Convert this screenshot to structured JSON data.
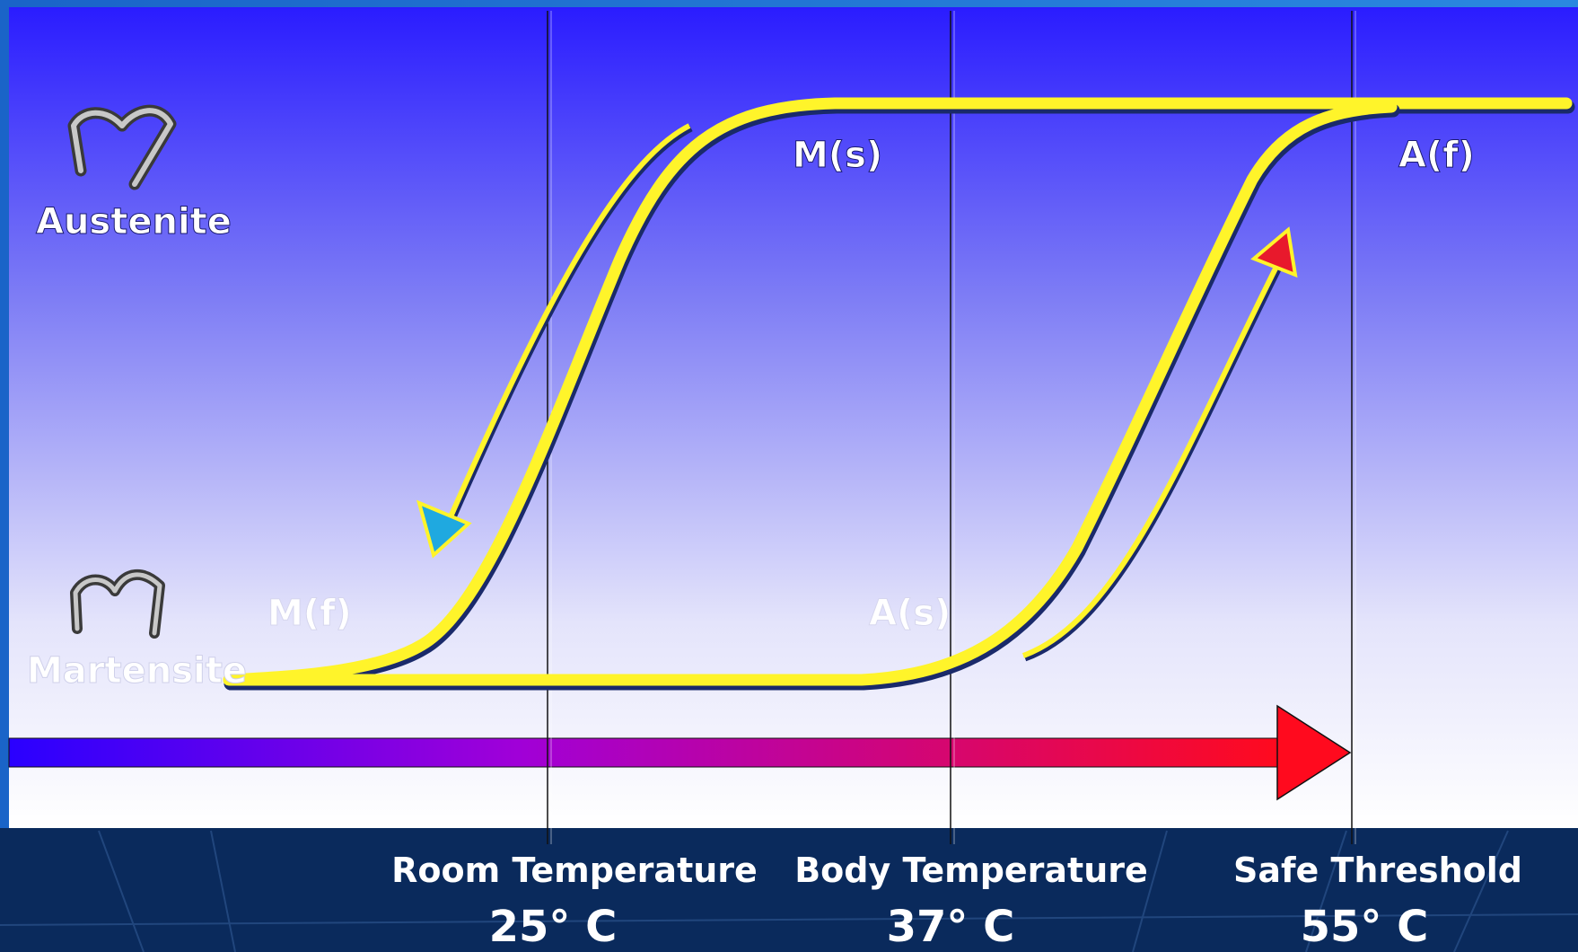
{
  "phases": {
    "top": "Austenite",
    "bottom": "Martensite"
  },
  "transition_points": {
    "ms": "M(s)",
    "mf": "M(f)",
    "as": "A(s)",
    "af": "A(f)"
  },
  "markers": [
    {
      "title": "Room Temperature",
      "value": "25° C"
    },
    {
      "title": "Body Temperature",
      "value": "37° C"
    },
    {
      "title": "Safe Threshold",
      "value": "55° C"
    }
  ],
  "colors": {
    "curve": "#fff42a",
    "cool_arrow_head": "#1fa9e0",
    "heat_arrow_head": "#e8192c",
    "gradient_cold": "#2a00ff",
    "gradient_hot": "#ff0a1e",
    "bottom_band": "#0a2a5c"
  },
  "icons": {
    "austenite": "austenite-wire-icon",
    "martensite": "martensite-wire-icon"
  }
}
